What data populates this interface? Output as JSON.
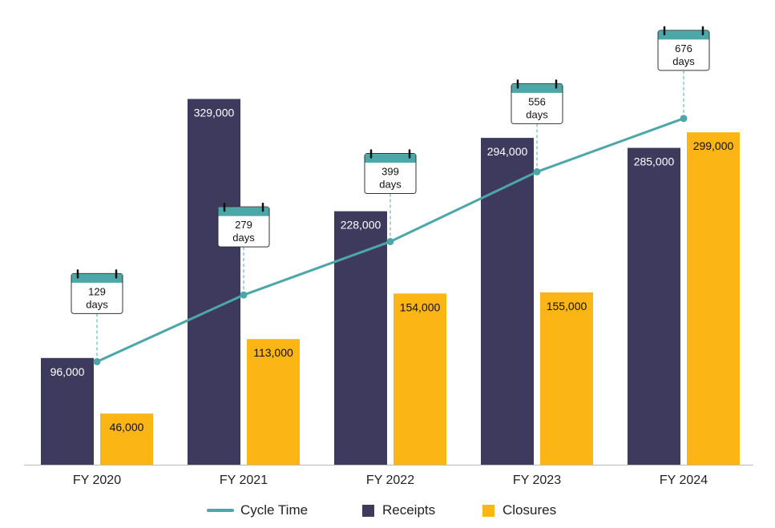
{
  "chart_data": {
    "type": "bar",
    "categories": [
      "FY 2020",
      "FY 2021",
      "FY 2022",
      "FY 2023",
      "FY 2024"
    ],
    "series": [
      {
        "name": "Receipts",
        "kind": "bar",
        "color": "#3d3a5e",
        "values": [
          96000,
          329000,
          228000,
          294000,
          285000
        ],
        "labels": [
          "96,000",
          "329,000",
          "228,000",
          "294,000",
          "285,000"
        ]
      },
      {
        "name": "Closures",
        "kind": "bar",
        "color": "#fbb515",
        "values": [
          46000,
          113000,
          154000,
          155000,
          299000
        ],
        "labels": [
          "46,000",
          "113,000",
          "154,000",
          "155,000",
          "299,000"
        ]
      },
      {
        "name": "Cycle Time",
        "kind": "line",
        "color": "#4da7a8",
        "unit": "days",
        "values": [
          129,
          279,
          399,
          556,
          676
        ],
        "labels": [
          "129",
          "279",
          "399",
          "556",
          "676"
        ]
      }
    ],
    "unit_label": "days",
    "bar_ylim": [
      0,
      400000
    ],
    "line_ylim": [
      0,
      1000
    ],
    "legend_position": "bottom",
    "grid": false,
    "title": "",
    "xlabel": "",
    "ylabel": ""
  }
}
